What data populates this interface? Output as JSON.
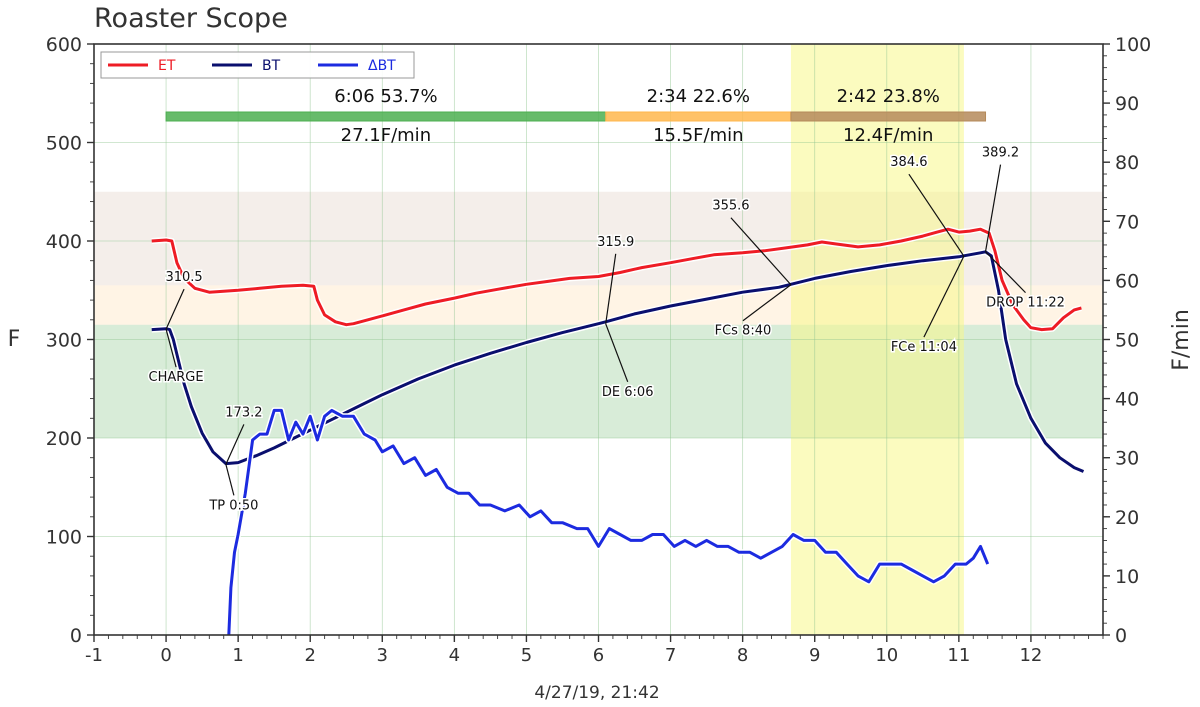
{
  "chart_data": {
    "type": "line",
    "title": "Roaster Scope",
    "xlabel": "4/27/19, 21:42",
    "ylabel": "F",
    "ylabel_right": "F/min",
    "xlim": [
      -1,
      13
    ],
    "ylim": [
      0,
      600
    ],
    "ylim_right": [
      0,
      100
    ],
    "x_ticks": [
      -1,
      0,
      1,
      2,
      3,
      4,
      5,
      6,
      7,
      8,
      9,
      10,
      11,
      12
    ],
    "y_ticks": [
      0,
      100,
      200,
      300,
      400,
      500,
      600
    ],
    "y_ticks_right": [
      0,
      10,
      20,
      30,
      40,
      50,
      60,
      70,
      80,
      90,
      100
    ],
    "grid": true,
    "legend": "top-left",
    "colors": {
      "ET": "#ee1c25",
      "BT": "#0a0f6e",
      "DeltaBT": "#1c2be0"
    },
    "series": [
      {
        "name": "ET",
        "x": [
          -0.2,
          0.0,
          0.08,
          0.15,
          0.25,
          0.4,
          0.6,
          0.8,
          1.0,
          1.3,
          1.6,
          1.9,
          2.05,
          2.1,
          2.2,
          2.35,
          2.5,
          2.6,
          2.8,
          3.0,
          3.3,
          3.6,
          4.0,
          4.3,
          4.6,
          5.0,
          5.3,
          5.6,
          6.0,
          6.3,
          6.6,
          7.0,
          7.3,
          7.6,
          8.0,
          8.3,
          8.6,
          8.9,
          9.1,
          9.3,
          9.6,
          9.9,
          10.2,
          10.5,
          10.7,
          10.85,
          11.0,
          11.15,
          11.3,
          11.42,
          11.5,
          11.6,
          11.75,
          11.9,
          12.0,
          12.15,
          12.3,
          12.45,
          12.6,
          12.7
        ],
        "values": [
          400,
          401,
          400,
          378,
          362,
          352,
          348,
          349,
          350,
          352,
          354,
          355,
          354,
          340,
          325,
          318,
          315,
          316,
          320,
          324,
          330,
          336,
          342,
          347,
          351,
          356,
          359,
          362,
          364,
          368,
          373,
          378,
          382,
          386,
          388,
          390,
          393,
          396,
          399,
          397,
          394,
          396,
          400,
          405,
          409,
          412,
          409,
          410,
          412,
          408,
          390,
          360,
          335,
          320,
          312,
          310,
          311,
          322,
          330,
          332
        ]
      },
      {
        "name": "BT",
        "x": [
          -0.2,
          0.0,
          0.05,
          0.1,
          0.15,
          0.25,
          0.35,
          0.5,
          0.65,
          0.83,
          1.0,
          1.25,
          1.5,
          1.75,
          2.0,
          2.25,
          2.5,
          2.75,
          3.0,
          3.5,
          4.0,
          4.5,
          5.0,
          5.5,
          6.0,
          6.1,
          6.5,
          7.0,
          7.5,
          8.0,
          8.5,
          8.67,
          9.0,
          9.5,
          10.0,
          10.5,
          11.0,
          11.07,
          11.3,
          11.37,
          11.45,
          11.55,
          11.65,
          11.8,
          12.0,
          12.2,
          12.4,
          12.6,
          12.73
        ],
        "values": [
          310,
          311,
          310,
          300,
          285,
          255,
          232,
          205,
          186,
          174,
          175,
          182,
          190,
          199,
          208,
          217,
          226,
          235,
          244,
          260,
          274,
          286,
          297,
          307,
          316,
          318,
          326,
          334,
          341,
          348,
          353,
          356,
          362,
          369,
          375,
          380,
          384,
          385,
          388,
          389,
          385,
          350,
          300,
          255,
          220,
          195,
          180,
          170,
          166
        ]
      },
      {
        "name": "ΔBT",
        "axis": "right",
        "x": [
          0.87,
          0.9,
          0.95,
          1.0,
          1.1,
          1.2,
          1.3,
          1.4,
          1.5,
          1.6,
          1.7,
          1.8,
          1.9,
          2.0,
          2.1,
          2.2,
          2.3,
          2.45,
          2.6,
          2.75,
          2.9,
          3.0,
          3.15,
          3.3,
          3.45,
          3.6,
          3.75,
          3.9,
          4.05,
          4.2,
          4.35,
          4.5,
          4.7,
          4.9,
          5.05,
          5.2,
          5.35,
          5.5,
          5.7,
          5.85,
          6.0,
          6.15,
          6.3,
          6.45,
          6.6,
          6.75,
          6.9,
          7.05,
          7.2,
          7.35,
          7.5,
          7.65,
          7.8,
          7.95,
          8.1,
          8.25,
          8.4,
          8.55,
          8.7,
          8.85,
          9.0,
          9.15,
          9.3,
          9.45,
          9.6,
          9.75,
          9.9,
          10.05,
          10.2,
          10.35,
          10.5,
          10.65,
          10.8,
          10.95,
          11.1,
          11.2,
          11.3,
          11.4
        ],
        "values": [
          0,
          8,
          14,
          17,
          24,
          33,
          34,
          34,
          38,
          38,
          33,
          36,
          34,
          37,
          33,
          37,
          38,
          37,
          37,
          34,
          33,
          31,
          32,
          29,
          30,
          27,
          28,
          25,
          24,
          24,
          22,
          22,
          21,
          22,
          20,
          21,
          19,
          19,
          18,
          18,
          15,
          18,
          17,
          16,
          16,
          17,
          17,
          15,
          16,
          15,
          16,
          15,
          15,
          14,
          14,
          13,
          14,
          15,
          17,
          16,
          16,
          14,
          14,
          12,
          10,
          9,
          12,
          12,
          12,
          11,
          10,
          9,
          10,
          12,
          12,
          13,
          15,
          12
        ]
      }
    ],
    "phases": [
      {
        "time_label": "6:06",
        "pct_label": "53.7%",
        "rate_label": "27.1F/min",
        "start": 0.0,
        "end": 6.1,
        "color": "#4caf50"
      },
      {
        "time_label": "2:34",
        "pct_label": "22.6%",
        "rate_label": "15.5F/min",
        "start": 6.1,
        "end": 8.67,
        "color": "#ffb74d"
      },
      {
        "time_label": "2:42",
        "pct_label": "23.8%",
        "rate_label": "12.4F/min",
        "start": 8.67,
        "end": 11.37,
        "color": "#b58a5a"
      }
    ],
    "bands": [
      {
        "from": 200,
        "to": 315,
        "color": "#7fbf7f"
      },
      {
        "from": 315,
        "to": 355,
        "color": "#ffd9a8"
      },
      {
        "from": 355,
        "to": 450,
        "color": "#d9c7b8"
      }
    ],
    "highlight": {
      "x_from": 8.67,
      "x_to": 11.07,
      "color": "#f7f78a"
    },
    "events": [
      {
        "label": "CHARGE",
        "value_label": "310.5",
        "x": 0.0,
        "y": 310.5
      },
      {
        "label": "TP 0:50",
        "value_label": "173.2",
        "x": 0.83,
        "y": 173.2
      },
      {
        "label": "DE 6:06",
        "value_label": "315.9",
        "x": 6.1,
        "y": 315.9
      },
      {
        "label": "FCs 8:40",
        "value_label": "355.6",
        "x": 8.67,
        "y": 355.6
      },
      {
        "label": "FCe 11:04",
        "value_label": "384.6",
        "x": 11.07,
        "y": 384.6
      },
      {
        "label": "DROP 11:22",
        "value_label": "389.2",
        "x": 11.37,
        "y": 389.2
      }
    ]
  }
}
